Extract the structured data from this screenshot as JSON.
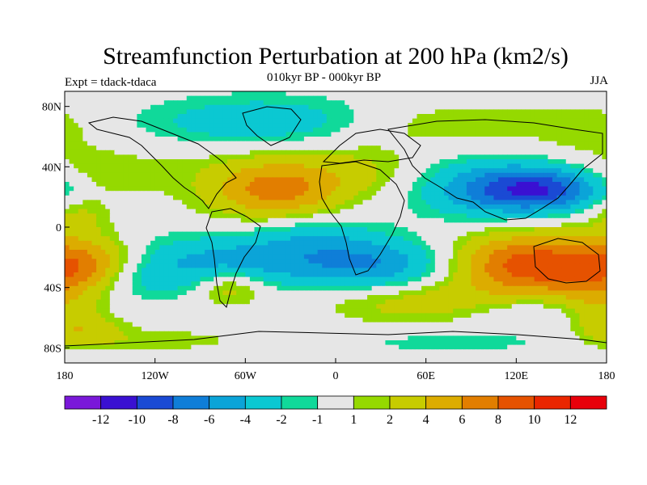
{
  "chart_data": {
    "type": "heatmap",
    "title": "Streamfunction Perturbation at 200 hPa (km2/s)",
    "subtitle": "010kyr BP - 000kyr BP",
    "left_label": "Expt = tdack-tdaca",
    "right_label": "JJA",
    "x_range": [
      -180,
      180
    ],
    "y_range": [
      -90,
      90
    ],
    "x_ticks": [
      {
        "value": -180,
        "label": "180"
      },
      {
        "value": -120,
        "label": "120W"
      },
      {
        "value": -60,
        "label": "60W"
      },
      {
        "value": 0,
        "label": "0"
      },
      {
        "value": 60,
        "label": "60E"
      },
      {
        "value": 120,
        "label": "120E"
      },
      {
        "value": 180,
        "label": "180"
      }
    ],
    "y_ticks": [
      {
        "value": 80,
        "label": "80N"
      },
      {
        "value": 40,
        "label": "40N"
      },
      {
        "value": 0,
        "label": "0"
      },
      {
        "value": -40,
        "label": "40S"
      },
      {
        "value": -80,
        "label": "80S"
      }
    ],
    "colorbar": {
      "colors": [
        "#7a18d9",
        "#3a10d2",
        "#1a4ad4",
        "#0f7ed8",
        "#0ba4d8",
        "#0bc8d2",
        "#10d99a",
        "#e6e6e6",
        "#95d900",
        "#c7cc00",
        "#dcac00",
        "#e27e00",
        "#e65200",
        "#ea2600",
        "#e8000a"
      ],
      "labels": [
        "-12",
        "-10",
        "-8",
        "-6",
        "-4",
        "-2",
        "-1",
        "1",
        "2",
        "4",
        "6",
        "8",
        "10",
        "12"
      ]
    },
    "field_features": [
      {
        "lon": -50,
        "lat": 70,
        "value": -3.5,
        "rlon": 55,
        "rlat": 12
      },
      {
        "lon": -80,
        "lat": 45,
        "value": 0.5,
        "rlon": 40,
        "rlat": 10
      },
      {
        "lon": -40,
        "lat": 25,
        "value": 7,
        "rlon": 32,
        "rlat": 14
      },
      {
        "lon": 20,
        "lat": 38,
        "value": 2,
        "rlon": 30,
        "rlat": 12
      },
      {
        "lon": 0,
        "lat": 55,
        "value": 0.2,
        "rlon": 35,
        "rlat": 10
      },
      {
        "lon": 80,
        "lat": 68,
        "value": 2,
        "rlon": 50,
        "rlat": 10
      },
      {
        "lon": 140,
        "lat": 25,
        "value": -8,
        "rlon": 30,
        "rlat": 10
      },
      {
        "lon": 100,
        "lat": 25,
        "value": -5,
        "rlon": 35,
        "rlat": 14
      },
      {
        "lon": 170,
        "lat": 65,
        "value": 1.5,
        "rlon": 25,
        "rlat": 12
      },
      {
        "lon": -160,
        "lat": 35,
        "value": 2,
        "rlon": 35,
        "rlat": 12
      },
      {
        "lon": -172,
        "lat": 8,
        "value": 2.5,
        "rlon": 15,
        "rlat": 10
      },
      {
        "lon": -70,
        "lat": -22,
        "value": -4.5,
        "rlon": 55,
        "rlat": 12
      },
      {
        "lon": 30,
        "lat": -25,
        "value": -5.5,
        "rlon": 40,
        "rlat": 12
      },
      {
        "lon": -15,
        "lat": -5,
        "value": -2.5,
        "rlon": 30,
        "rlat": 10
      },
      {
        "lon": 130,
        "lat": -25,
        "value": 9.5,
        "rlon": 40,
        "rlat": 15
      },
      {
        "lon": -165,
        "lat": -25,
        "value": 6,
        "rlon": 25,
        "rlat": 12
      },
      {
        "lon": -130,
        "lat": -35,
        "value": -2.5,
        "rlon": 25,
        "rlat": 10
      },
      {
        "lon": -70,
        "lat": -40,
        "value": 3.5,
        "rlon": 15,
        "rlat": 8
      },
      {
        "lon": 55,
        "lat": -50,
        "value": 3,
        "rlon": 45,
        "rlat": 10
      },
      {
        "lon": 130,
        "lat": -55,
        "value": -2,
        "rlon": 35,
        "rlat": 8
      },
      {
        "lon": 175,
        "lat": -50,
        "value": 3,
        "rlon": 20,
        "rlat": 12
      },
      {
        "lon": -120,
        "lat": -75,
        "value": 1.5,
        "rlon": 50,
        "rlat": 6
      },
      {
        "lon": 80,
        "lat": -76,
        "value": -1.5,
        "rlon": 60,
        "rlat": 6
      },
      {
        "lon": -170,
        "lat": -68,
        "value": 3,
        "rlon": 20,
        "rlat": 8
      }
    ]
  }
}
